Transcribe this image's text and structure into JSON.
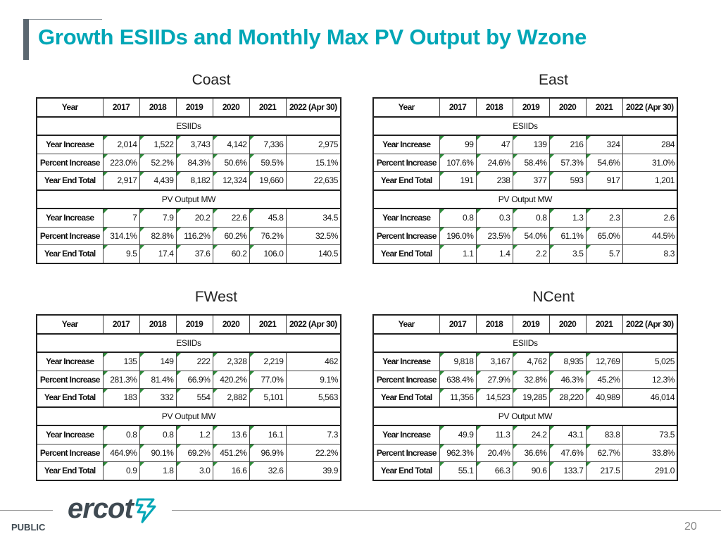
{
  "title": "Growth ESIIDs and Monthly Max PV Output by Wzone",
  "footer": {
    "classification": "PUBLIC",
    "page_number": "20",
    "logo_text": "ercot"
  },
  "tables": [
    {
      "region": "Coast",
      "headers": [
        "Year",
        "2017",
        "2018",
        "2019",
        "2020",
        "2021",
        "2022 (Apr 30)"
      ],
      "sections": [
        {
          "label": "ESIIDs",
          "rows": [
            {
              "label": "Year Increase",
              "values": [
                "2,014",
                "1,522",
                "3,743",
                "4,142",
                "7,336",
                "2,975"
              ]
            },
            {
              "label": "Percent Increase",
              "values": [
                "223.0%",
                "52.2%",
                "84.3%",
                "50.6%",
                "59.5%",
                "15.1%"
              ]
            },
            {
              "label": "Year End Total",
              "values": [
                "2,917",
                "4,439",
                "8,182",
                "12,324",
                "19,660",
                "22,635"
              ]
            }
          ]
        },
        {
          "label": "PV Output MW",
          "rows": [
            {
              "label": "Year Increase",
              "values": [
                "7",
                "7.9",
                "20.2",
                "22.6",
                "45.8",
                "34.5"
              ]
            },
            {
              "label": "Percent Increase",
              "values": [
                "314.1%",
                "82.8%",
                "116.2%",
                "60.2%",
                "76.2%",
                "32.5%"
              ]
            },
            {
              "label": "Year End Total",
              "values": [
                "9.5",
                "17.4",
                "37.6",
                "60.2",
                "106.0",
                "140.5"
              ]
            }
          ]
        }
      ]
    },
    {
      "region": "East",
      "headers": [
        "Year",
        "2017",
        "2018",
        "2019",
        "2020",
        "2021",
        "2022 (Apr 30)"
      ],
      "sections": [
        {
          "label": "ESIIDs",
          "rows": [
            {
              "label": "Year Increase",
              "values": [
                "99",
                "47",
                "139",
                "216",
                "324",
                "284"
              ]
            },
            {
              "label": "Percent Increase",
              "values": [
                "107.6%",
                "24.6%",
                "58.4%",
                "57.3%",
                "54.6%",
                "31.0%"
              ]
            },
            {
              "label": "Year End Total",
              "values": [
                "191",
                "238",
                "377",
                "593",
                "917",
                "1,201"
              ]
            }
          ]
        },
        {
          "label": "PV Output MW",
          "rows": [
            {
              "label": "Year Increase",
              "values": [
                "0.8",
                "0.3",
                "0.8",
                "1.3",
                "2.3",
                "2.6"
              ]
            },
            {
              "label": "Percent Increase",
              "values": [
                "196.0%",
                "23.5%",
                "54.0%",
                "61.1%",
                "65.0%",
                "44.5%"
              ]
            },
            {
              "label": "Year End Total",
              "values": [
                "1.1",
                "1.4",
                "2.2",
                "3.5",
                "5.7",
                "8.3"
              ]
            }
          ]
        }
      ]
    },
    {
      "region": "FWest",
      "headers": [
        "Year",
        "2017",
        "2018",
        "2019",
        "2020",
        "2021",
        "2022 (Apr 30)"
      ],
      "sections": [
        {
          "label": "ESIIDs",
          "rows": [
            {
              "label": "Year Increase",
              "values": [
                "135",
                "149",
                "222",
                "2,328",
                "2,219",
                "462"
              ]
            },
            {
              "label": "Percent Increase",
              "values": [
                "281.3%",
                "81.4%",
                "66.9%",
                "420.2%",
                "77.0%",
                "9.1%"
              ]
            },
            {
              "label": "Year End Total",
              "values": [
                "183",
                "332",
                "554",
                "2,882",
                "5,101",
                "5,563"
              ]
            }
          ]
        },
        {
          "label": "PV Output MW",
          "rows": [
            {
              "label": "Year Increase",
              "values": [
                "0.8",
                "0.8",
                "1.2",
                "13.6",
                "16.1",
                "7.3"
              ]
            },
            {
              "label": "Percent Increase",
              "values": [
                "464.9%",
                "90.1%",
                "69.2%",
                "451.2%",
                "96.9%",
                "22.2%"
              ]
            },
            {
              "label": "Year End Total",
              "values": [
                "0.9",
                "1.8",
                "3.0",
                "16.6",
                "32.6",
                "39.9"
              ]
            }
          ]
        }
      ]
    },
    {
      "region": "NCent",
      "headers": [
        "Year",
        "2017",
        "2018",
        "2019",
        "2020",
        "2021",
        "2022 (Apr 30)"
      ],
      "sections": [
        {
          "label": "ESIIDs",
          "rows": [
            {
              "label": "Year Increase",
              "values": [
                "9,818",
                "3,167",
                "4,762",
                "8,935",
                "12,769",
                "5,025"
              ]
            },
            {
              "label": "Percent Increase",
              "values": [
                "638.4%",
                "27.9%",
                "32.8%",
                "46.3%",
                "45.2%",
                "12.3%"
              ]
            },
            {
              "label": "Year End Total",
              "values": [
                "11,356",
                "14,523",
                "19,285",
                "28,220",
                "40,989",
                "46,014"
              ]
            }
          ]
        },
        {
          "label": "PV Output MW",
          "rows": [
            {
              "label": "Year Increase",
              "values": [
                "49.9",
                "11.3",
                "24.2",
                "43.1",
                "83.8",
                "73.5"
              ]
            },
            {
              "label": "Percent Increase",
              "values": [
                "962.3%",
                "20.4%",
                "36.6%",
                "47.6%",
                "62.7%",
                "33.8%"
              ]
            },
            {
              "label": "Year End Total",
              "values": [
                "55.1",
                "66.3",
                "90.6",
                "133.7",
                "217.5",
                "291.0"
              ]
            }
          ]
        }
      ]
    }
  ]
}
